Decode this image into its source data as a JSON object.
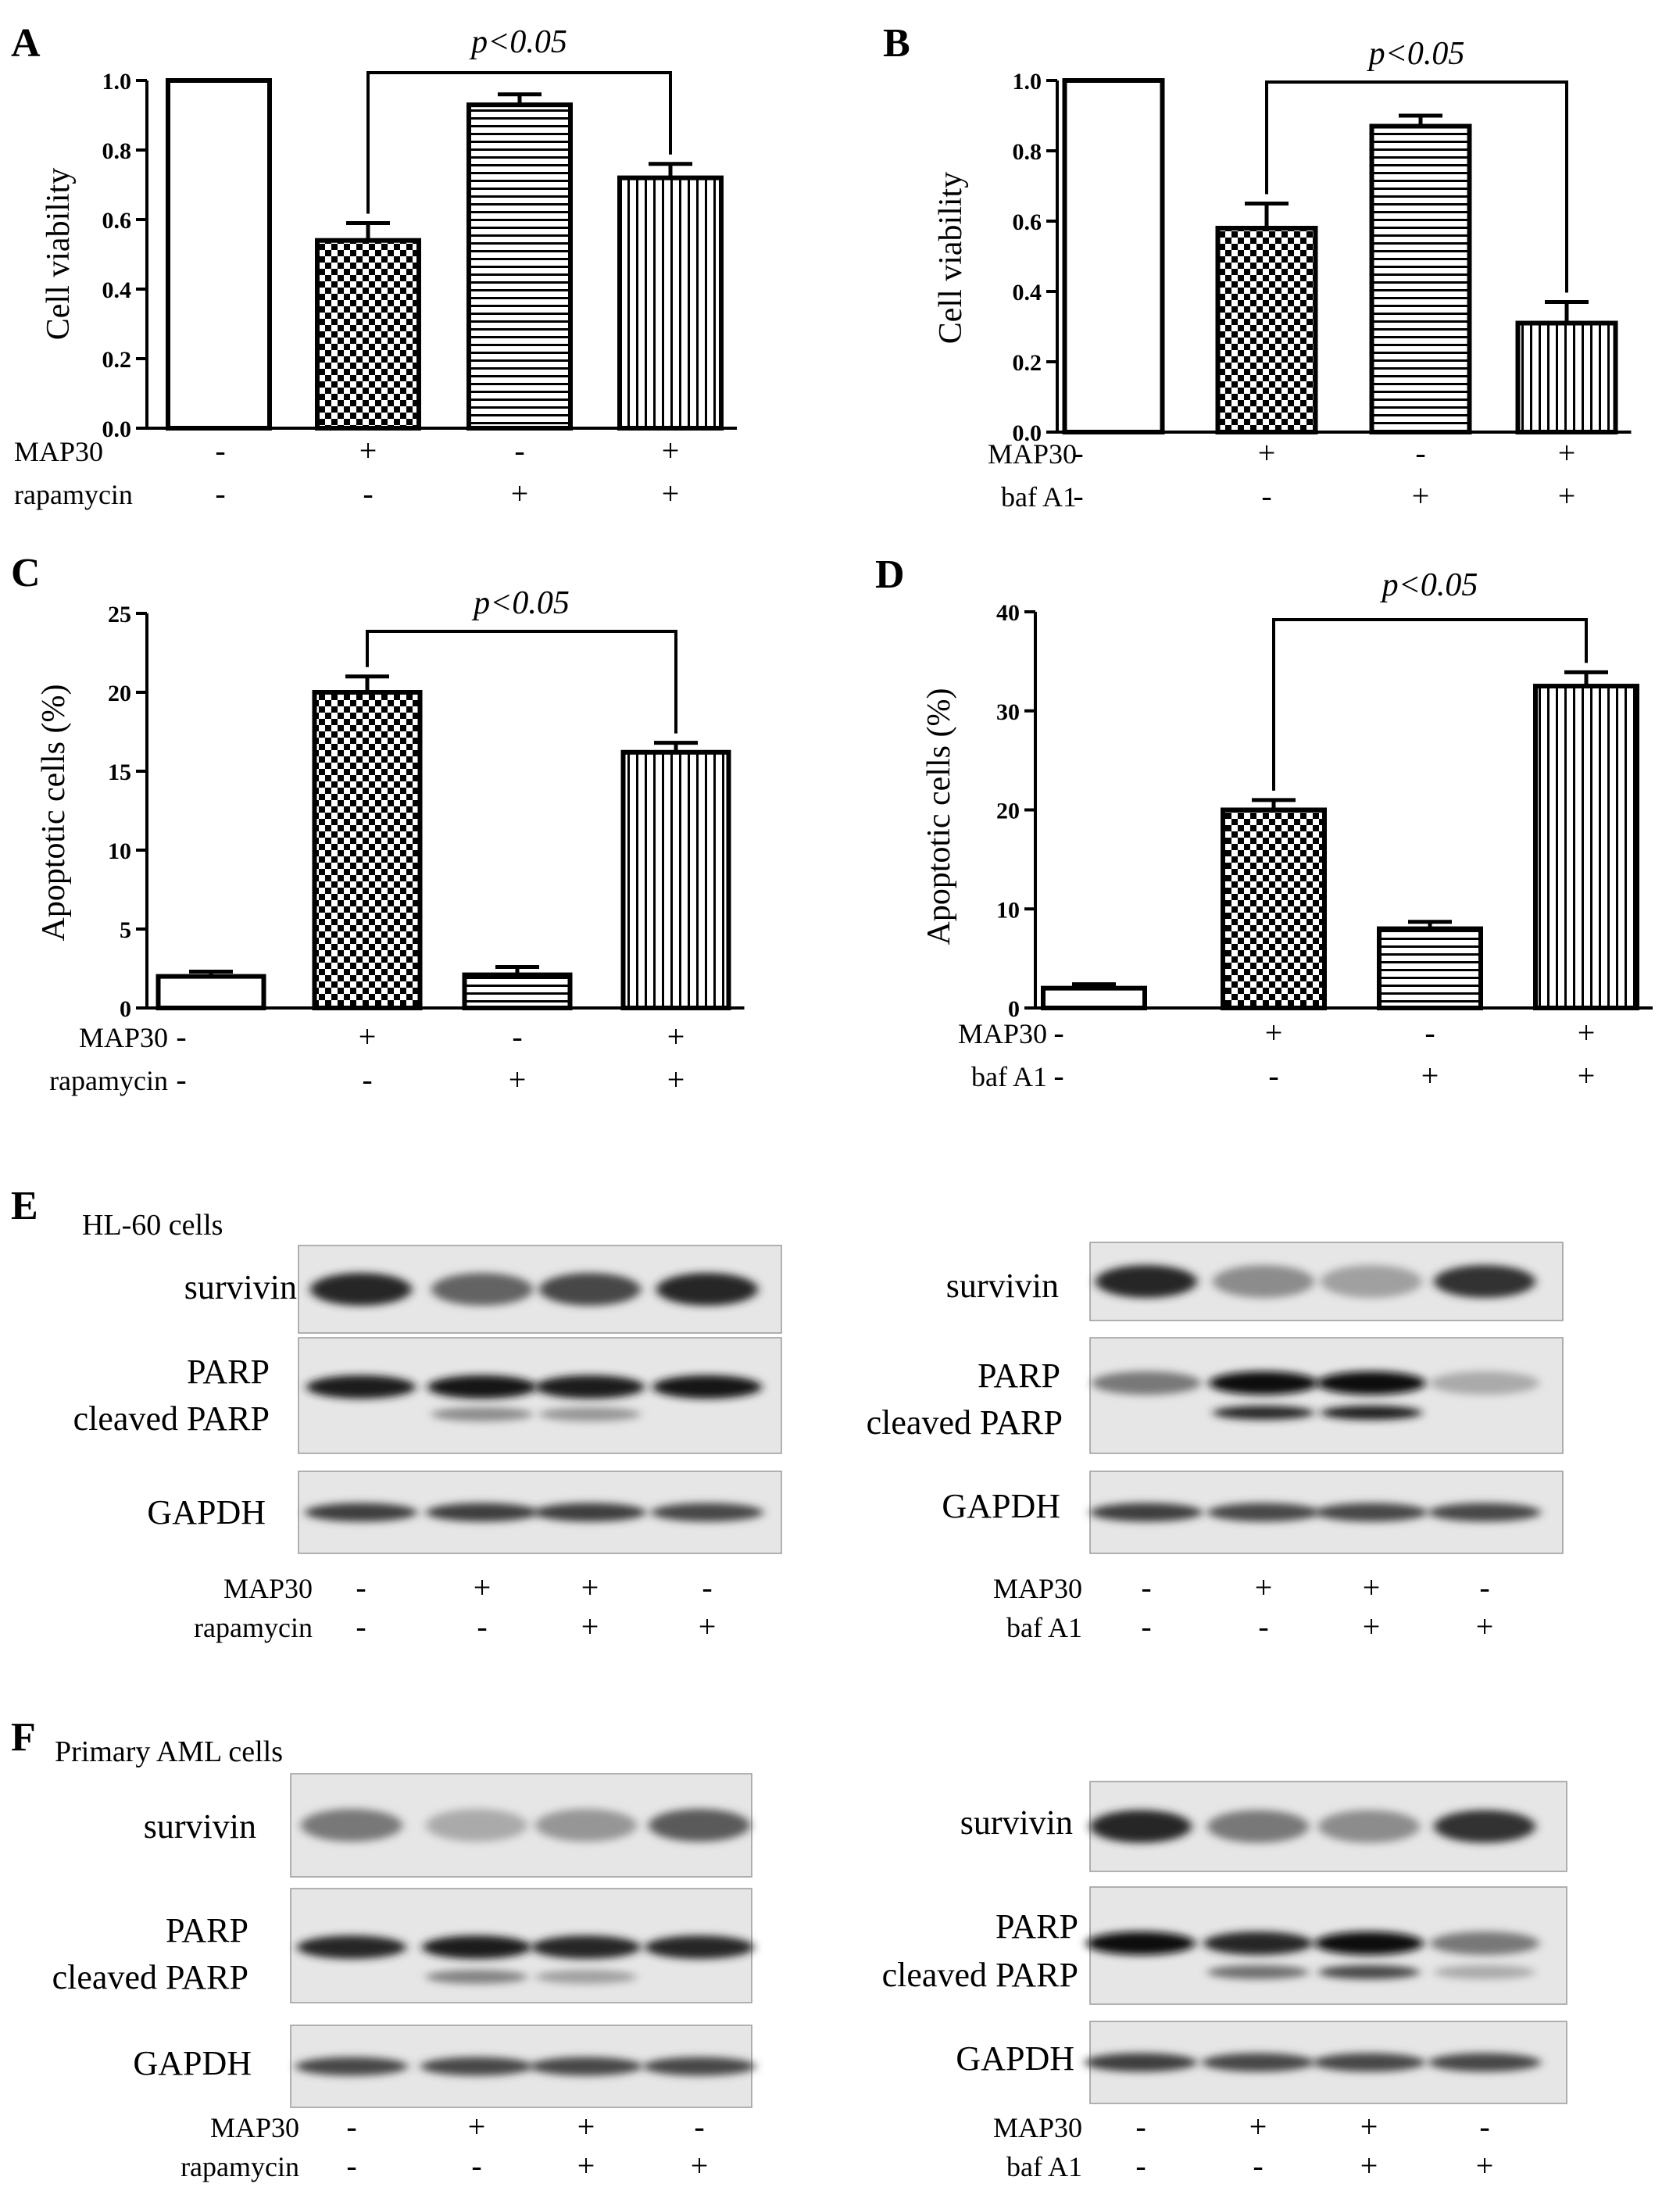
{
  "chart_data": [
    {
      "panel": "A",
      "type": "bar",
      "ylabel": "Cell viability",
      "ylim": [
        0,
        1.0
      ],
      "yticks": [
        "0.0",
        "0.2",
        "0.4",
        "0.6",
        "0.8",
        "1.0"
      ],
      "values": [
        1.0,
        0.54,
        0.93,
        0.72
      ],
      "errors": [
        0,
        0.05,
        0.03,
        0.04
      ],
      "patterns": [
        "blank",
        "checker",
        "hlines",
        "vlines"
      ],
      "treatments": [
        {
          "label": "MAP30",
          "signs": [
            "-",
            "+",
            "-",
            "+"
          ]
        },
        {
          "label": "rapamycin",
          "signs": [
            "-",
            "-",
            "+",
            "+"
          ]
        }
      ],
      "bracket": {
        "from": 1,
        "to": 3,
        "label": "p<0.05"
      }
    },
    {
      "panel": "B",
      "type": "bar",
      "ylabel": "Cell viability",
      "ylim": [
        0,
        1.0
      ],
      "yticks": [
        "0.0",
        "0.2",
        "0.4",
        "0.6",
        "0.8",
        "1.0"
      ],
      "values": [
        1.0,
        0.58,
        0.87,
        0.31
      ],
      "errors": [
        0,
        0.07,
        0.03,
        0.06
      ],
      "patterns": [
        "blank",
        "checker",
        "hlines",
        "vlines"
      ],
      "treatments": [
        {
          "label": "MAP30",
          "signs": [
            "-",
            "+",
            "-",
            "+"
          ]
        },
        {
          "label": "baf A1",
          "signs": [
            "-",
            "-",
            "+",
            "+"
          ]
        }
      ],
      "bracket": {
        "from": 1,
        "to": 3,
        "label": "p<0.05"
      }
    },
    {
      "panel": "C",
      "type": "bar",
      "ylabel": "Apoptotic cells (%)",
      "ylim": [
        0,
        25
      ],
      "yticks": [
        "0",
        "5",
        "10",
        "15",
        "20",
        "25"
      ],
      "values": [
        2.0,
        20.0,
        2.1,
        16.2
      ],
      "errors": [
        0.3,
        1.0,
        0.5,
        0.6
      ],
      "patterns": [
        "blank",
        "checker",
        "hlines",
        "vlines"
      ],
      "treatments": [
        {
          "label": "MAP30",
          "signs": [
            "-",
            "+",
            "-",
            "+"
          ]
        },
        {
          "label": "rapamycin",
          "signs": [
            "-",
            "-",
            "+",
            "+"
          ]
        }
      ],
      "bracket": {
        "from": 1,
        "to": 3,
        "label": "p<0.05"
      }
    },
    {
      "panel": "D",
      "type": "bar",
      "ylabel": "Apoptotic cells (%)",
      "ylim": [
        0,
        40
      ],
      "yticks": [
        "0",
        "10",
        "20",
        "30",
        "40"
      ],
      "values": [
        2.0,
        20.0,
        8.0,
        32.5
      ],
      "errors": [
        0.4,
        1.0,
        0.7,
        1.4
      ],
      "patterns": [
        "blank",
        "checker",
        "hlines",
        "vlines"
      ],
      "treatments": [
        {
          "label": "MAP30",
          "signs": [
            "-",
            "+",
            "-",
            "+"
          ]
        },
        {
          "label": "baf A1",
          "signs": [
            "-",
            "-",
            "+",
            "+"
          ]
        }
      ],
      "bracket": {
        "from": 1,
        "to": 3,
        "label": "p<0.05"
      }
    }
  ],
  "blots": {
    "E": {
      "letter": "E",
      "title": "HL-60 cells",
      "left": {
        "labels": {
          "survivin": "survivin",
          "parp": "PARP",
          "cleaved": "cleaved PARP",
          "gapdh": "GAPDH"
        },
        "survivin": [
          0.85,
          0.55,
          0.7,
          0.85
        ],
        "parp": [
          0.9,
          0.95,
          0.9,
          0.95
        ],
        "cleaved": [
          0,
          0.35,
          0.3,
          0
        ],
        "gapdh": [
          0.75,
          0.75,
          0.75,
          0.7
        ],
        "treatments": [
          {
            "label": "MAP30",
            "signs": [
              "-",
              "+",
              "+",
              "-"
            ]
          },
          {
            "label": "rapamycin",
            "signs": [
              "-",
              "-",
              "+",
              "+"
            ]
          }
        ]
      },
      "right": {
        "labels": {
          "survivin": "survivin",
          "parp": "PARP",
          "cleaved": "cleaved PARP",
          "gapdh": "GAPDH"
        },
        "survivin": [
          0.85,
          0.35,
          0.25,
          0.8
        ],
        "parp": [
          0.45,
          1.0,
          1.0,
          0.2
        ],
        "cleaved": [
          0,
          0.85,
          0.9,
          0
        ],
        "gapdh": [
          0.75,
          0.7,
          0.7,
          0.7
        ],
        "treatments": [
          {
            "label": "MAP30",
            "signs": [
              "-",
              "+",
              "+",
              "-"
            ]
          },
          {
            "label": "baf A1",
            "signs": [
              "-",
              "-",
              "+",
              "+"
            ]
          }
        ]
      }
    },
    "F": {
      "letter": "F",
      "title": "Primary AML cells",
      "left": {
        "labels": {
          "survivin": "survivin",
          "parp": "PARP",
          "cleaved": "cleaved PARP",
          "gapdh": "GAPDH"
        },
        "survivin": [
          0.45,
          0.2,
          0.3,
          0.6
        ],
        "parp": [
          0.85,
          0.9,
          0.85,
          0.85
        ],
        "cleaved": [
          0,
          0.4,
          0.25,
          0
        ],
        "gapdh": [
          0.7,
          0.7,
          0.7,
          0.7
        ],
        "treatments": [
          {
            "label": "MAP30",
            "signs": [
              "-",
              "+",
              "+",
              "-"
            ]
          },
          {
            "label": "rapamycin",
            "signs": [
              "-",
              "-",
              "+",
              "+"
            ]
          }
        ]
      },
      "right": {
        "labels": {
          "survivin": "survivin",
          "parp": "PARP",
          "cleaved": "cleaved PARP",
          "gapdh": "GAPDH"
        },
        "survivin": [
          0.85,
          0.45,
          0.35,
          0.8
        ],
        "parp": [
          1.0,
          0.85,
          1.0,
          0.45
        ],
        "cleaved": [
          0,
          0.5,
          0.7,
          0.2
        ],
        "gapdh": [
          0.75,
          0.7,
          0.7,
          0.7
        ],
        "treatments": [
          {
            "label": "MAP30",
            "signs": [
              "-",
              "+",
              "+",
              "-"
            ]
          },
          {
            "label": "baf A1",
            "signs": [
              "-",
              "-",
              "+",
              "+"
            ]
          }
        ]
      }
    }
  }
}
